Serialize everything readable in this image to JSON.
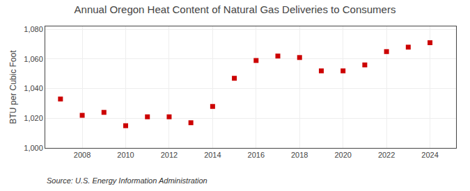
{
  "chart_data": {
    "type": "scatter",
    "title": "Annual Oregon Heat Content of Natural Gas Deliveries to Consumers",
    "y_label": "BTU per Cubic Foot",
    "annotations": [
      "Source: U.S. Energy Information Administration"
    ],
    "x": [
      2007,
      2008,
      2009,
      2010,
      2011,
      2012,
      2013,
      2014,
      2015,
      2016,
      2017,
      2018,
      2019,
      2020,
      2021,
      2022,
      2023,
      2024
    ],
    "values": [
      1033,
      1022,
      1024,
      1015,
      1021,
      1021,
      1017,
      1028,
      1047,
      1059,
      1062,
      1061,
      1052,
      1052,
      1056,
      1065,
      1068,
      1071
    ],
    "color": "#cc0000",
    "marker": "square",
    "xlim": [
      2006.3,
      2025.2
    ],
    "xticks": [
      2008,
      2010,
      2012,
      2014,
      2016,
      2018,
      2020,
      2022,
      2024
    ],
    "ylim": [
      1000,
      1082
    ],
    "yticks": [
      {
        "value": 1000,
        "label": "1,000"
      },
      {
        "value": 1020,
        "label": "1,020"
      },
      {
        "value": 1040,
        "label": "1,040"
      },
      {
        "value": 1060,
        "label": "1,060"
      },
      {
        "value": 1080,
        "label": "1,080"
      }
    ],
    "grid": true
  }
}
